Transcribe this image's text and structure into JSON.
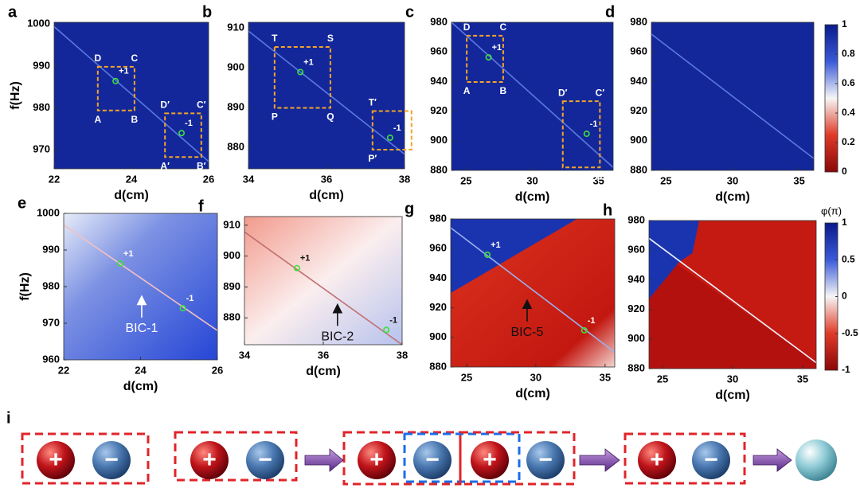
{
  "panels": [
    {
      "label": "a",
      "xlabel": "d(cm)",
      "ylabel": "f(Hz)",
      "xlim": [
        22,
        26
      ],
      "ylim": [
        965.5,
        1000.4
      ],
      "xticks": [
        22,
        24,
        26
      ],
      "yticks": [
        970,
        980,
        990,
        1000
      ],
      "boxes": [
        {
          "x": [
            23.13,
            24.08
          ],
          "y": [
            979.4,
            989.8
          ],
          "corners": [
            "A",
            "B",
            "C",
            "D"
          ]
        },
        {
          "x": [
            24.87,
            25.81
          ],
          "y": [
            968.3,
            978.7
          ],
          "corners": [
            "A′",
            "B′",
            "C′",
            "D′"
          ]
        }
      ],
      "markers": [
        {
          "x": 23.59,
          "y": 986.4,
          "label": "+1"
        },
        {
          "x": 25.3,
          "y": 974.0,
          "label": "-1"
        }
      ]
    },
    {
      "label": "b",
      "xlabel": "d(cm)",
      "xlim": [
        34,
        38
      ],
      "ylim": [
        874.6,
        911.4
      ],
      "xticks": [
        34,
        36,
        38
      ],
      "yticks": [
        880,
        890,
        900,
        910
      ],
      "boxes": [
        {
          "x": [
            34.67,
            36.1
          ],
          "y": [
            889.9,
            905.2
          ],
          "corners": [
            "P",
            "Q",
            "S",
            "T"
          ]
        },
        {
          "x": [
            37.18,
            38.18
          ],
          "y": [
            879.4,
            889.1
          ],
          "corners": [
            "P′",
            "Q′",
            "S′",
            "T′"
          ]
        }
      ],
      "markers": [
        {
          "x": 35.33,
          "y": 898.9,
          "label": "+1"
        },
        {
          "x": 37.63,
          "y": 882.4,
          "label": "-1"
        }
      ]
    },
    {
      "label": "c",
      "xlabel": "d(cm)",
      "xlim": [
        23.9,
        36.1
      ],
      "ylim": [
        880,
        980
      ],
      "xticks": [
        25,
        30,
        35
      ],
      "yticks": [
        880,
        900,
        920,
        940,
        960,
        980
      ],
      "boxes": [
        {
          "x": [
            25.05,
            27.8
          ],
          "y": [
            939.7,
            970.9
          ],
          "corners": [
            "A",
            "B",
            "C",
            "D"
          ]
        },
        {
          "x": [
            32.3,
            35.1
          ],
          "y": [
            882,
            926.7
          ],
          "corners": [
            "A′",
            "B′",
            "C′",
            "D′"
          ]
        }
      ],
      "markers": [
        {
          "x": 26.7,
          "y": 956.3,
          "label": "+1"
        },
        {
          "x": 34.1,
          "y": 904.7,
          "label": "-1"
        }
      ]
    },
    {
      "label": "d",
      "xlabel": "d(cm)",
      "xlim": [
        23.9,
        36.1
      ],
      "ylim": [
        880,
        980
      ],
      "xticks": [
        25,
        30,
        35
      ],
      "yticks": [
        880,
        900,
        920,
        940,
        960,
        980
      ],
      "colorbar": {
        "lim": [
          0,
          1
        ],
        "ticks": [
          0,
          0.2,
          0.4,
          0.6,
          0.8,
          1
        ]
      }
    },
    {
      "label": "e",
      "xlabel": "d(cm)",
      "ylabel": "f(Hz)",
      "xlim": [
        22,
        26
      ],
      "ylim": [
        960,
        1000
      ],
      "xticks": [
        22,
        24,
        26
      ],
      "yticks": [
        960,
        970,
        980,
        990,
        1000
      ],
      "markers": [
        {
          "x": 23.47,
          "y": 986.3,
          "label": "+1"
        },
        {
          "x": 25.1,
          "y": 974.1,
          "label": "-1"
        }
      ],
      "annotation": {
        "text": "BIC-1",
        "x": 24.03,
        "y": 968.5
      }
    },
    {
      "label": "f",
      "xlabel": "d(cm)",
      "xlim": [
        34,
        38
      ],
      "ylim": [
        871.3,
        912.8
      ],
      "xticks": [
        34,
        36,
        38
      ],
      "yticks": [
        880,
        890,
        900,
        910
      ],
      "markers": [
        {
          "x": 35.33,
          "y": 896.1,
          "label": "+1"
        },
        {
          "x": 37.6,
          "y": 876.1,
          "label": "-1"
        }
      ],
      "annotation": {
        "text": "BIC-2",
        "x": 36.36,
        "y": 873.8
      }
    },
    {
      "label": "g",
      "xlabel": "d(cm)",
      "xlim": [
        23.85,
        35.7
      ],
      "ylim": [
        880,
        980
      ],
      "xticks": [
        25,
        30,
        35
      ],
      "yticks": [
        880,
        900,
        920,
        940,
        960,
        980
      ],
      "markers": [
        {
          "x": 26.5,
          "y": 955.8,
          "label": "+1"
        },
        {
          "x": 33.5,
          "y": 904.8,
          "label": "-1"
        }
      ],
      "annotation": {
        "text": "BIC-5",
        "x": 29.37,
        "y": 903.2
      }
    },
    {
      "label": "h",
      "xlabel": "d(cm)",
      "xlim": [
        24.03,
        35.97
      ],
      "ylim": [
        880,
        980
      ],
      "xticks": [
        25,
        30,
        35
      ],
      "yticks": [
        880,
        900,
        920,
        940,
        960,
        980
      ],
      "colorbar": {
        "label": "φ(π)",
        "lim": [
          -1,
          1
        ],
        "ticks": [
          -1,
          -0.5,
          0,
          0.5,
          1
        ]
      }
    }
  ],
  "panel_i": {
    "label": "i",
    "signs": [
      "+",
      "−",
      "+",
      "−",
      "+",
      "−",
      "+",
      "−",
      "+",
      "−"
    ]
  }
}
